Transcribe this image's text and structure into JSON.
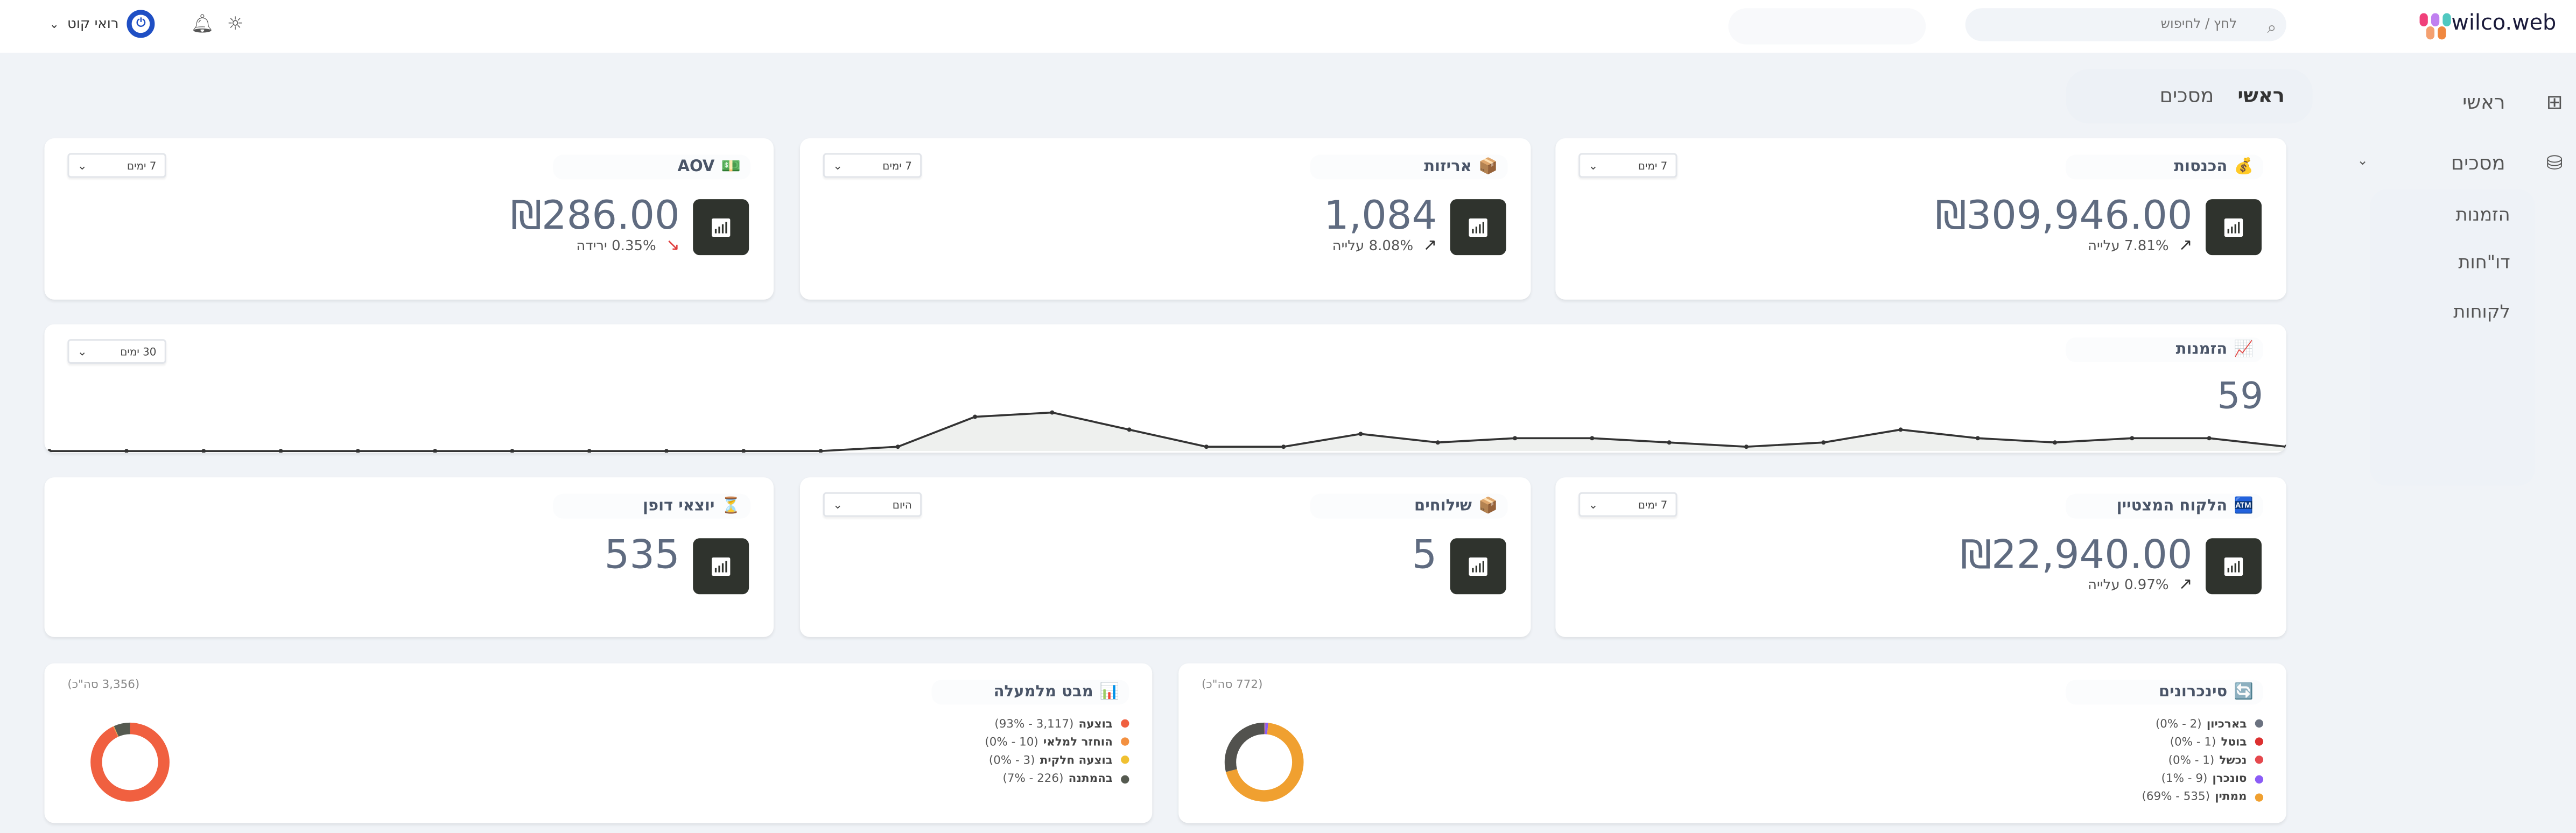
{
  "header": {
    "logo_text": "wilco.web",
    "search_placeholder": "לחץ / לחיפוש",
    "user_name": "רואי קוט",
    "icons": [
      "search-icon",
      "bell-icon",
      "sun-icon",
      "chevron-down-icon"
    ]
  },
  "sidebar": {
    "items": [
      {
        "label": "ראשי",
        "icon": "grid-icon"
      },
      {
        "label": "מסכים",
        "icon": "database-icon",
        "expanded": true
      }
    ],
    "sub_items": [
      "הזמנות",
      "דו\"חות",
      "לקוחות"
    ]
  },
  "tabs": [
    {
      "label": "ראשי",
      "active": true
    },
    {
      "label": "מסכים",
      "active": false
    }
  ],
  "cards": {
    "revenue": {
      "icon": "💰",
      "title": "הכנסות",
      "value": "₪309,946.00",
      "change": "7.81% עלייה",
      "trend": "up",
      "range": "7 ימים"
    },
    "packages": {
      "icon": "📦",
      "title": "אריזות",
      "value": "1,084",
      "change": "8.08% עלייה",
      "trend": "up",
      "range": "7 ימים"
    },
    "aov": {
      "icon": "💵",
      "title": "AOV",
      "value": "₪286.00",
      "change": "0.35% ירידה",
      "trend": "down",
      "range": "7 ימים"
    },
    "top_customer": {
      "icon": "🏧",
      "title": "הלקוח המצטיין",
      "value": "₪22,940.00",
      "change": "0.97% עלייה",
      "trend": "up",
      "range": "7 ימים"
    },
    "shipments": {
      "icon": "📦",
      "title": "שילוחים",
      "value": "5",
      "range": "היום"
    },
    "stragglers": {
      "icon": "⏳",
      "title": "יוצאי דופן",
      "value": "535"
    }
  },
  "orders": {
    "icon": "📈",
    "title": "הזמנות",
    "value": "59",
    "range": "30 ימים"
  },
  "chart_data": {
    "type": "area",
    "values": [
      0,
      0,
      0,
      0,
      0,
      0,
      0,
      0,
      0,
      0,
      0,
      1,
      8,
      9,
      5,
      1,
      1,
      4,
      2,
      3,
      3,
      2,
      1,
      2,
      5,
      3,
      2,
      3,
      3,
      1
    ],
    "grid": false,
    "color": "#333333",
    "fill": "#eef0ee"
  },
  "sync": {
    "icon": "🔄",
    "title": "סינכרונים",
    "total": "(772 סה\"כ)",
    "total_value": 772,
    "items": [
      {
        "label": "בארכיון",
        "detail": "(2 - 0%)",
        "value": 2,
        "color": "#6b7280"
      },
      {
        "label": "בוטל",
        "detail": "(1 - 0%)",
        "value": 1,
        "color": "#dc2f2f"
      },
      {
        "label": "נכשל",
        "detail": "(1 - 0%)",
        "value": 1,
        "color": "#e5484d"
      },
      {
        "label": "סונכרן",
        "detail": "(9 - 1%)",
        "value": 9,
        "color": "#8b5cf6"
      },
      {
        "label": "ממתין",
        "detail": "(535 - 69%)",
        "value": 535,
        "color": "#f0a030"
      }
    ],
    "other_color": "#52524e"
  },
  "funnel": {
    "icon": "📊",
    "title": "מבט מלמעלה",
    "total": "(3,356 סה\"כ)",
    "total_value": 3356,
    "items": [
      {
        "label": "בוצעה",
        "detail": "(3,117 - 93%)",
        "value": 3117,
        "color": "#f06040"
      },
      {
        "label": "הוחזר למלאי",
        "detail": "(10 - 0%)",
        "value": 10,
        "color": "#f39040"
      },
      {
        "label": "בוצעה חלקית",
        "detail": "(3 - 0%)",
        "value": 3,
        "color": "#f0c030"
      },
      {
        "label": "בהמתנה",
        "detail": "(226 - 7%)",
        "value": 226,
        "color": "#555a50"
      }
    ]
  }
}
